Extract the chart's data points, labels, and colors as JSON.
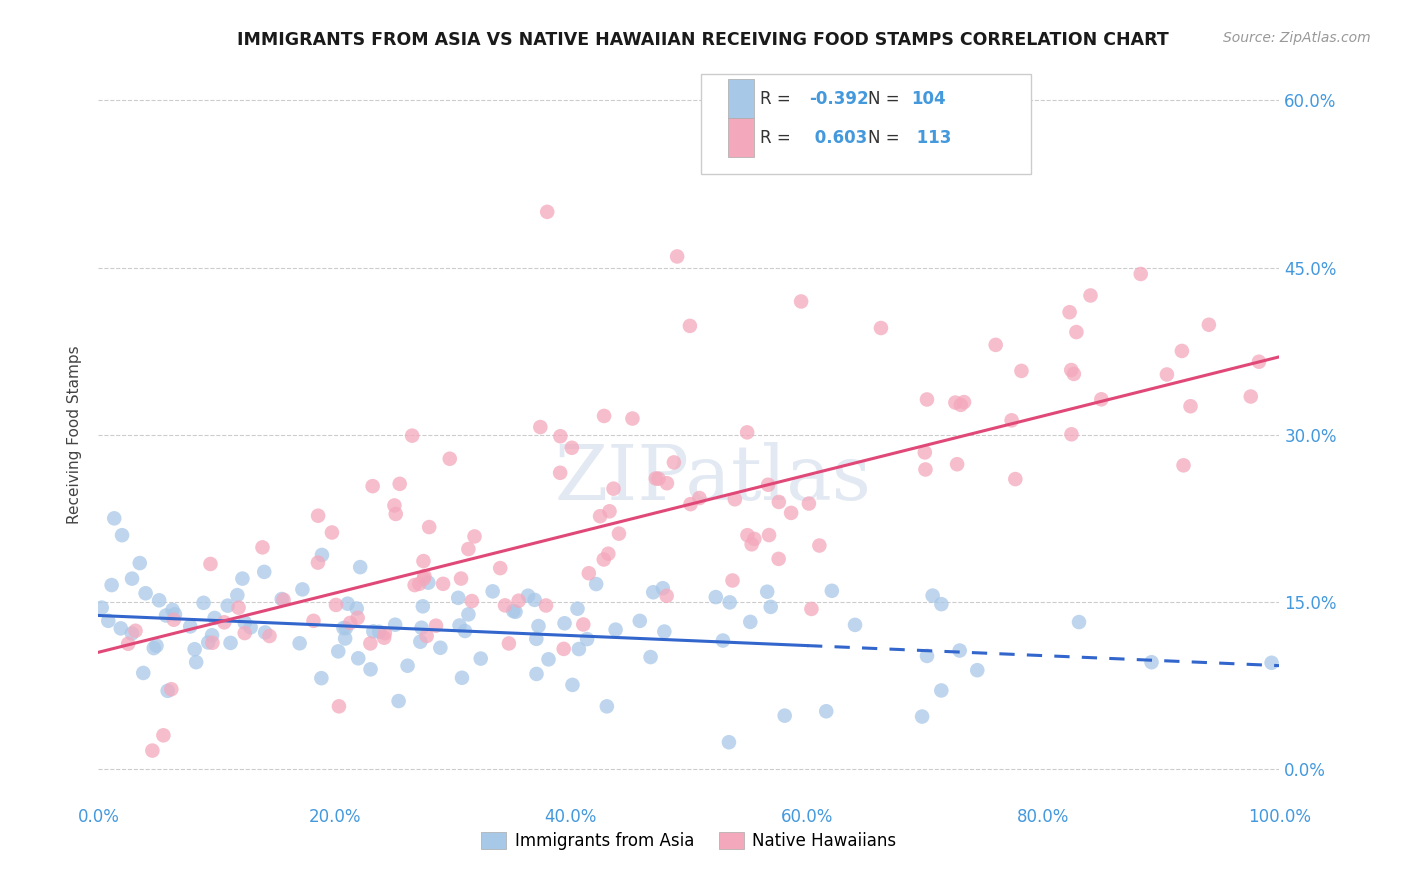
{
  "title": "IMMIGRANTS FROM ASIA VS NATIVE HAWAIIAN RECEIVING FOOD STAMPS CORRELATION CHART",
  "source": "Source: ZipAtlas.com",
  "ylabel": "Receiving Food Stamps",
  "xlim": [
    0,
    100
  ],
  "ylim": [
    -3,
    63
  ],
  "yticks": [
    0,
    15,
    30,
    45,
    60
  ],
  "xticks": [
    0,
    20,
    40,
    60,
    80,
    100
  ],
  "xtick_labels": [
    "0.0%",
    "20.0%",
    "40.0%",
    "60.0%",
    "80.0%",
    "100.0%"
  ],
  "ytick_labels": [
    "0.0%",
    "15.0%",
    "30.0%",
    "45.0%",
    "60.0%"
  ],
  "r_asia": -0.392,
  "n_asia": 104,
  "r_hawaiian": 0.603,
  "n_hawaiian": 113,
  "color_asia": "#a8c8e8",
  "color_hawaiian": "#f4a8bc",
  "line_color_asia": "#3366cc",
  "line_color_hawaiian": "#e04878",
  "background_color": "#ffffff",
  "title_color": "#1a1a1a",
  "source_color": "#999999",
  "axis_tick_color": "#4499dd",
  "legend_color": "#4499dd",
  "watermark": "ZIPatlas",
  "seed": 12345,
  "intercept_asia": 13.8,
  "slope_asia": -0.045,
  "intercept_hawaiian": 10.5,
  "slope_hawaiian": 0.265,
  "solid_cutoff": 60
}
